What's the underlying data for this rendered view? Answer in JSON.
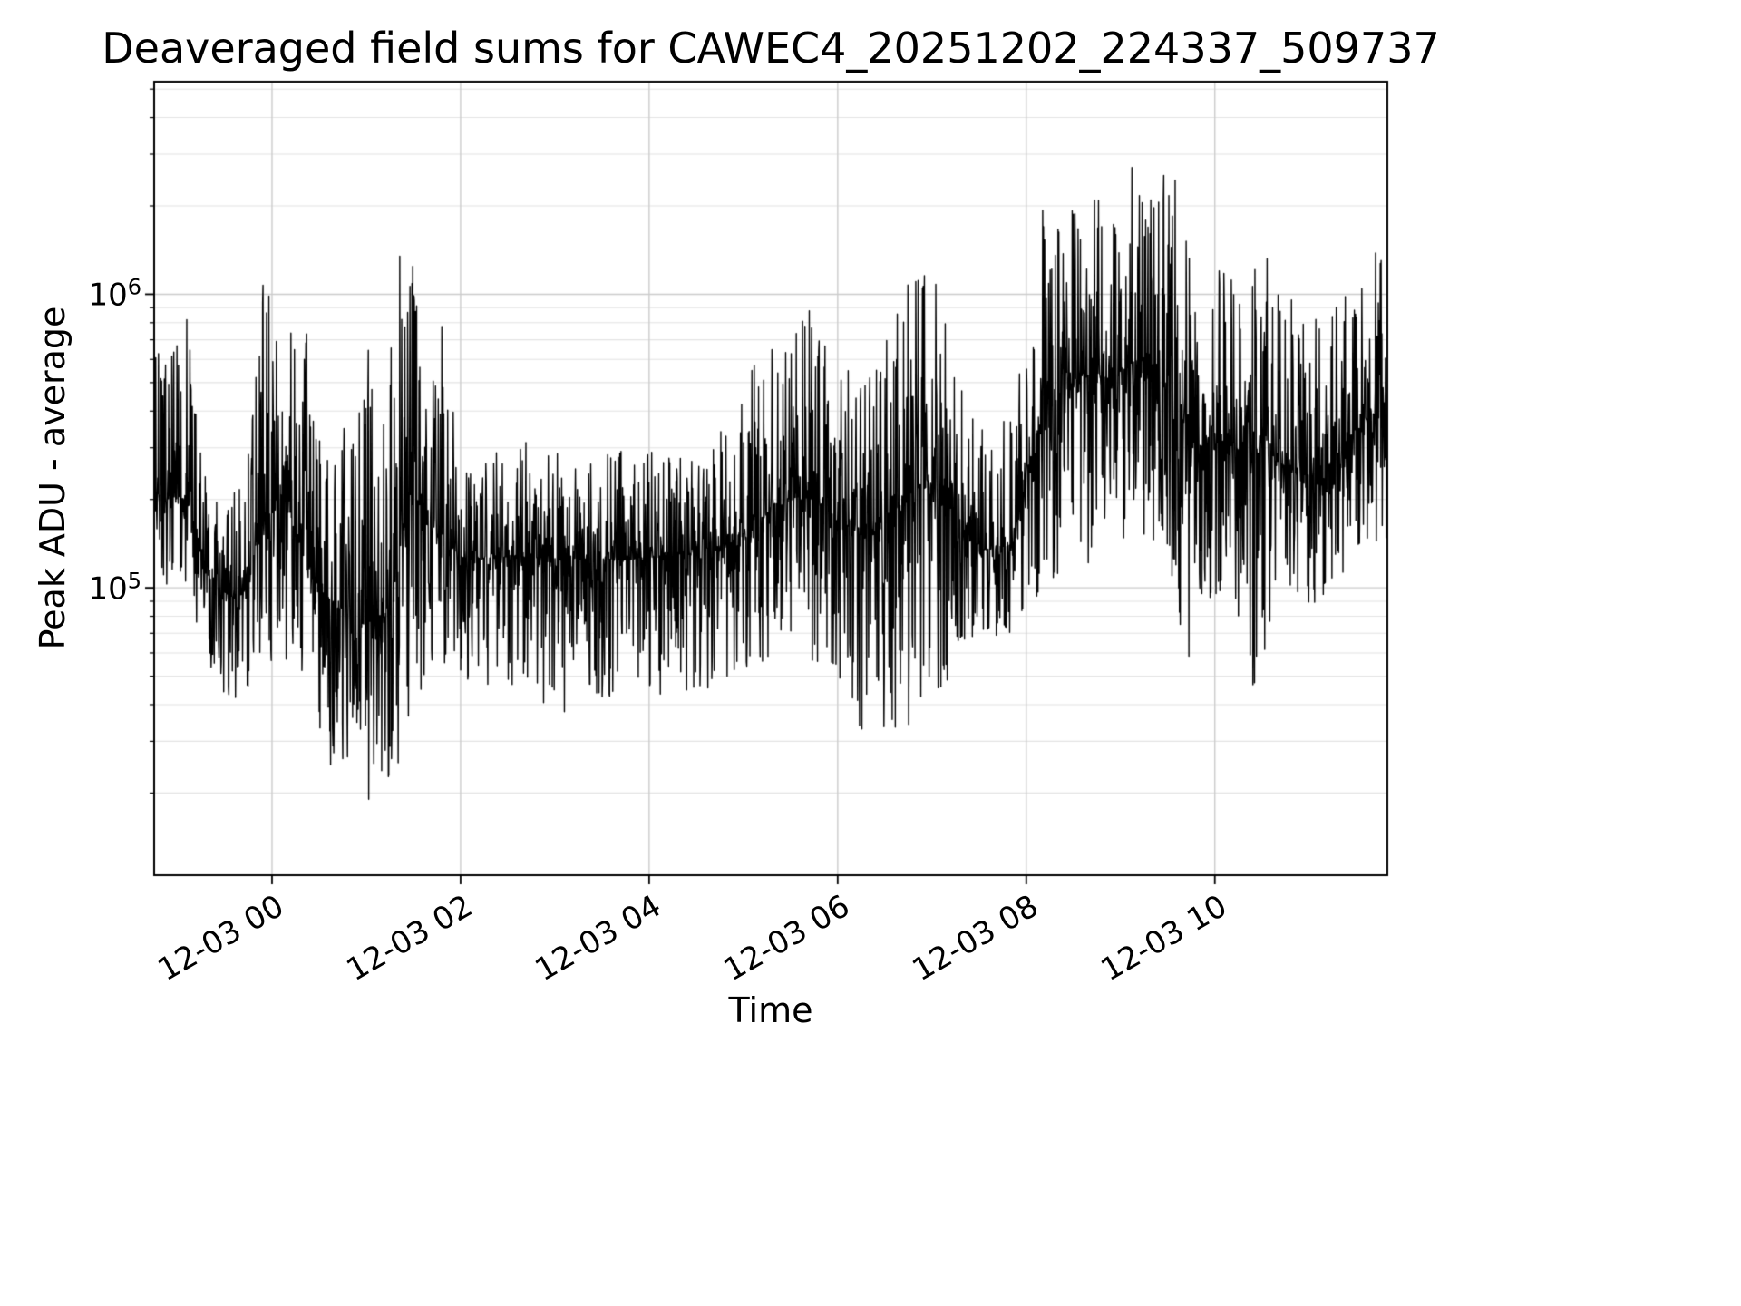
{
  "chart_data": {
    "type": "line",
    "title": "Deaveraged field sums for CAWEC4_20251202_224337_509737",
    "xlabel": "Time",
    "ylabel": "Peak ADU - average",
    "y_scale": "log",
    "ylim": [
      10500,
      5300000
    ],
    "x_domain_hours": [
      0,
      13.08
    ],
    "x_ticks": [
      {
        "label": "12-03 00",
        "t": 1.25
      },
      {
        "label": "12-03 02",
        "t": 3.25
      },
      {
        "label": "12-03 04",
        "t": 5.25
      },
      {
        "label": "12-03 06",
        "t": 7.25
      },
      {
        "label": "12-03 08",
        "t": 9.25
      },
      {
        "label": "12-03 10",
        "t": 11.25
      }
    ],
    "y_ticks": [
      {
        "base": "10",
        "exp": "5",
        "value": 100000
      },
      {
        "base": "10",
        "exp": "6",
        "value": 1000000
      }
    ],
    "grid": true,
    "legend": false,
    "line_color": "#000000",
    "background_color": "#ffffff",
    "series": [
      {
        "name": "Peak ADU - average",
        "style": "dense noisy single-channel time series, black, ~3100 samples, log-scale envelope below",
        "points_per_hour": 240,
        "envelope_log_interpolated": [
          {
            "t": 0.0,
            "lo": 95000,
            "mid": 210000,
            "hi": 620000
          },
          {
            "t": 0.35,
            "lo": 100000,
            "mid": 200000,
            "hi": 850000
          },
          {
            "t": 0.55,
            "lo": 55000,
            "mid": 110000,
            "hi": 260000
          },
          {
            "t": 0.9,
            "lo": 34000,
            "mid": 90000,
            "hi": 210000
          },
          {
            "t": 1.15,
            "lo": 60000,
            "mid": 170000,
            "hi": 1150000
          },
          {
            "t": 1.4,
            "lo": 50000,
            "mid": 200000,
            "hi": 800000
          },
          {
            "t": 1.65,
            "lo": 35000,
            "mid": 110000,
            "hi": 750000
          },
          {
            "t": 1.95,
            "lo": 22000,
            "mid": 85000,
            "hi": 300000
          },
          {
            "t": 2.2,
            "lo": 20000,
            "mid": 75000,
            "hi": 880000
          },
          {
            "t": 2.45,
            "lo": 17000,
            "mid": 80000,
            "hi": 450000
          },
          {
            "t": 2.65,
            "lo": 30000,
            "mid": 160000,
            "hi": 1900000
          },
          {
            "t": 2.85,
            "lo": 45000,
            "mid": 200000,
            "hi": 800000
          },
          {
            "t": 3.0,
            "lo": 40000,
            "mid": 150000,
            "hi": 1200000
          },
          {
            "t": 3.3,
            "lo": 48000,
            "mid": 125000,
            "hi": 300000
          },
          {
            "t": 3.8,
            "lo": 45000,
            "mid": 128000,
            "hi": 330000
          },
          {
            "t": 4.4,
            "lo": 37000,
            "mid": 125000,
            "hi": 280000
          },
          {
            "t": 5.0,
            "lo": 45000,
            "mid": 125000,
            "hi": 300000
          },
          {
            "t": 5.6,
            "lo": 42000,
            "mid": 130000,
            "hi": 280000
          },
          {
            "t": 6.05,
            "lo": 48000,
            "mid": 140000,
            "hi": 350000
          },
          {
            "t": 6.4,
            "lo": 55000,
            "mid": 170000,
            "hi": 700000
          },
          {
            "t": 6.75,
            "lo": 55000,
            "mid": 200000,
            "hi": 820000
          },
          {
            "t": 6.95,
            "lo": 50000,
            "mid": 210000,
            "hi": 960000
          },
          {
            "t": 7.3,
            "lo": 40000,
            "mid": 180000,
            "hi": 600000
          },
          {
            "t": 7.55,
            "lo": 29000,
            "mid": 150000,
            "hi": 500000
          },
          {
            "t": 7.9,
            "lo": 32000,
            "mid": 190000,
            "hi": 1050000
          },
          {
            "t": 8.25,
            "lo": 30000,
            "mid": 230000,
            "hi": 1200000
          },
          {
            "t": 8.5,
            "lo": 60000,
            "mid": 180000,
            "hi": 650000
          },
          {
            "t": 8.8,
            "lo": 65000,
            "mid": 135000,
            "hi": 400000
          },
          {
            "t": 9.1,
            "lo": 70000,
            "mid": 140000,
            "hi": 450000
          },
          {
            "t": 9.35,
            "lo": 90000,
            "mid": 330000,
            "hi": 2250000
          },
          {
            "t": 9.65,
            "lo": 110000,
            "mid": 480000,
            "hi": 1800000
          },
          {
            "t": 9.95,
            "lo": 120000,
            "mid": 550000,
            "hi": 2300000
          },
          {
            "t": 10.2,
            "lo": 100000,
            "mid": 500000,
            "hi": 1900000
          },
          {
            "t": 10.4,
            "lo": 140000,
            "mid": 600000,
            "hi": 3500000
          },
          {
            "t": 10.75,
            "lo": 110000,
            "mid": 520000,
            "hi": 4300000
          },
          {
            "t": 10.95,
            "lo": 50000,
            "mid": 380000,
            "hi": 1500000
          },
          {
            "t": 11.3,
            "lo": 95000,
            "mid": 300000,
            "hi": 1200000
          },
          {
            "t": 11.65,
            "lo": 45000,
            "mid": 300000,
            "hi": 1650000
          },
          {
            "t": 12.0,
            "lo": 95000,
            "mid": 260000,
            "hi": 1000000
          },
          {
            "t": 12.4,
            "lo": 85000,
            "mid": 250000,
            "hi": 800000
          },
          {
            "t": 12.75,
            "lo": 120000,
            "mid": 340000,
            "hi": 1100000
          },
          {
            "t": 13.08,
            "lo": 140000,
            "mid": 430000,
            "hi": 1800000
          }
        ]
      }
    ]
  }
}
